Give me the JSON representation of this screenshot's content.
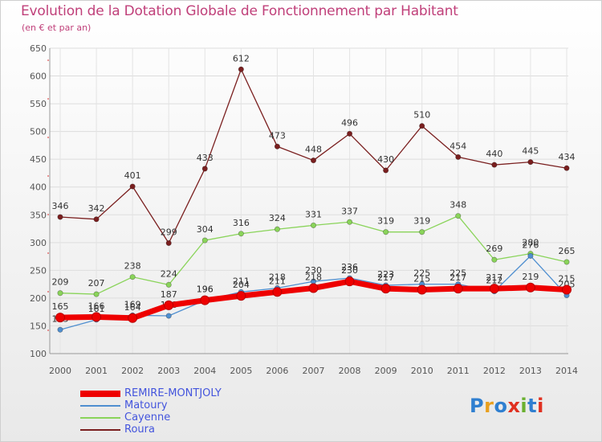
{
  "chart_data": {
    "type": "line",
    "title": "Evolution de la Dotation Globale de Fonctionnement par Habitant",
    "subtitle": "(en € et par an)",
    "xlabel": "",
    "ylabel": "",
    "ylim": [
      100,
      650
    ],
    "yticks": [
      100,
      150,
      200,
      250,
      300,
      350,
      400,
      450,
      500,
      550,
      600,
      650
    ],
    "categories": [
      "2000",
      "2001",
      "2002",
      "2003",
      "2004",
      "2005",
      "2006",
      "2007",
      "2008",
      "2009",
      "2010",
      "2011",
      "2012",
      "2013",
      "2014"
    ],
    "grid": true,
    "series": [
      {
        "name": "Roura",
        "color": "#7a1f1f",
        "values": [
          346,
          342,
          401,
          299,
          433,
          612,
          473,
          448,
          496,
          430,
          510,
          454,
          440,
          445,
          434
        ]
      },
      {
        "name": "Cayenne",
        "color": "#8ad45a",
        "values": [
          209,
          207,
          238,
          224,
          304,
          316,
          324,
          331,
          337,
          319,
          319,
          348,
          269,
          280,
          265
        ]
      },
      {
        "name": "Matoury",
        "color": "#4f8fd0",
        "values": [
          143,
          161,
          169,
          168,
          196,
          211,
          218,
          230,
          236,
          223,
          225,
          225,
          212,
          276,
          205
        ]
      },
      {
        "name": "REMIRE-MONTJOLY",
        "color": "#ee0000",
        "values": [
          165,
          166,
          164,
          187,
          196,
          204,
          211,
          218,
          230,
          217,
          215,
          217,
          217,
          219,
          215
        ]
      }
    ],
    "legend": [
      {
        "name": "REMIRE-MONTJOLY",
        "color": "#ee0000",
        "text_color": "#4455dd"
      },
      {
        "name": "Matoury",
        "color": "#4f8fd0",
        "text_color": "#4455dd"
      },
      {
        "name": "Cayenne",
        "color": "#8ad45a",
        "text_color": "#4455dd"
      },
      {
        "name": "Roura",
        "color": "#7a1f1f",
        "text_color": "#4455dd"
      }
    ]
  },
  "branding": {
    "logo_text": "Proxiti",
    "logo_colors": [
      "#2f7fd0",
      "#e8a020",
      "#2f7fd0",
      "#e03020",
      "#6ab030",
      "#2f7fd0",
      "#e03020"
    ]
  }
}
